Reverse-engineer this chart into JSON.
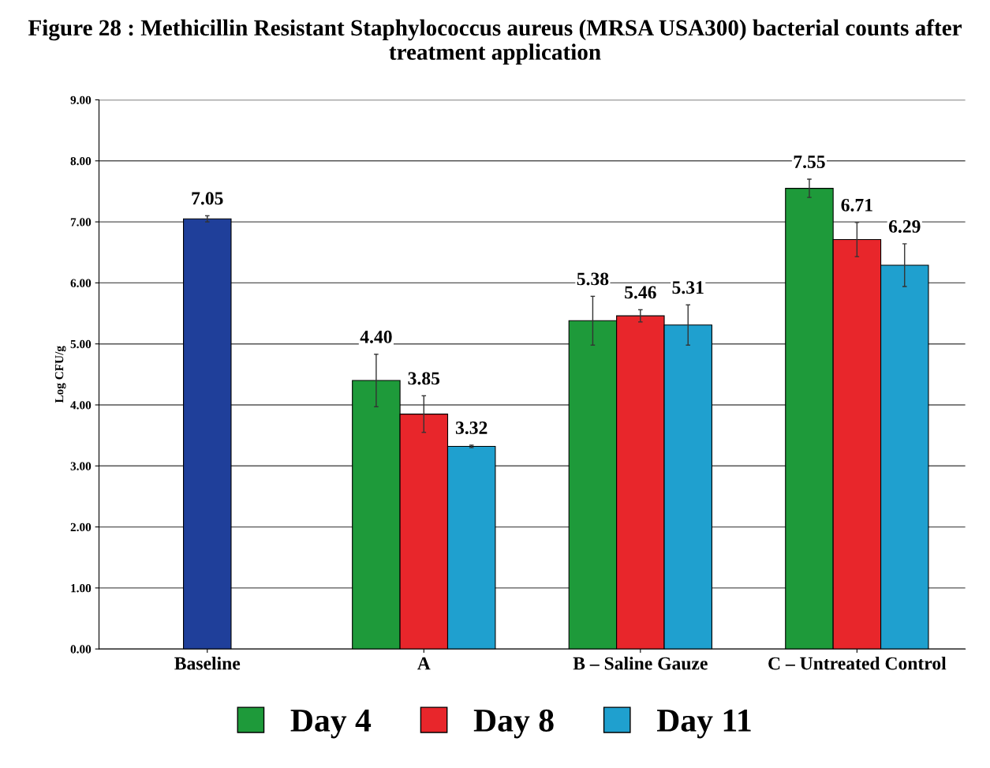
{
  "chart_data": {
    "type": "bar",
    "title": "Figure 28 : Methicillin Resistant Staphylococcus aureus (MRSA USA300) bacterial counts after treatment application",
    "ylabel": "Log CFU/g",
    "categories": [
      "Baseline",
      "A",
      "B – Saline Gauze",
      "C – Untreated Control"
    ],
    "series": [
      {
        "color": "#1f3f9a",
        "values": [
          7.05,
          null,
          null,
          null
        ],
        "errors": [
          0.05,
          null,
          null,
          null
        ],
        "value_labels": [
          "7.05",
          null,
          null,
          null
        ]
      },
      {
        "name": "Day 4",
        "color": "#1e9a3a",
        "values": [
          null,
          4.4,
          5.38,
          7.55
        ],
        "errors": [
          null,
          0.43,
          0.4,
          0.15
        ],
        "value_labels": [
          null,
          "4.40",
          "5.38",
          "7.55"
        ]
      },
      {
        "name": "Day 8",
        "color": "#e8262b",
        "values": [
          null,
          3.85,
          5.46,
          6.71
        ],
        "errors": [
          null,
          0.3,
          0.1,
          0.28
        ],
        "value_labels": [
          null,
          "3.85",
          "5.46",
          "6.71"
        ]
      },
      {
        "name": "Day 11",
        "color": "#1fa0cf",
        "values": [
          null,
          3.32,
          5.31,
          6.29
        ],
        "errors": [
          null,
          0.02,
          0.33,
          0.35
        ],
        "value_labels": [
          null,
          "3.32",
          "5.31",
          "6.29"
        ]
      }
    ],
    "ylim": [
      0,
      9
    ],
    "yticks": [
      {
        "value": 0,
        "label": "0.00"
      },
      {
        "value": 1,
        "label": "1.00"
      },
      {
        "value": 2,
        "label": "2.00"
      },
      {
        "value": 3,
        "label": "3.00"
      },
      {
        "value": 4,
        "label": "4.00"
      },
      {
        "value": 5,
        "label": "5.00"
      },
      {
        "value": 6,
        "label": "6.00"
      },
      {
        "value": 7,
        "label": "7.00"
      },
      {
        "value": 8,
        "label": "8.00"
      },
      {
        "value": 9,
        "label": "9.00"
      }
    ],
    "grid": "y",
    "legend": "bottom"
  }
}
